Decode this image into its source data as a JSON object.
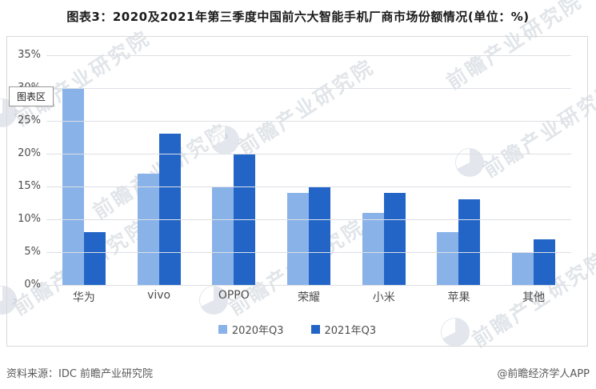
{
  "page": {
    "title": "图表3：2020及2021年第三季度中国前六大智能手机厂商市场份额情况(单位：%)"
  },
  "tooltip": {
    "label": "图表区"
  },
  "legend": {
    "items": [
      {
        "label": "2020年Q3",
        "color": "#89B2E8"
      },
      {
        "label": "2021年Q3",
        "color": "#2365C7"
      }
    ]
  },
  "footer": {
    "source": "资料来源：IDC 前瞻产业研究院",
    "credit": "@前瞻经济学人APP"
  },
  "watermark": {
    "text": "前瞻产业研究院"
  },
  "colors": {
    "bar_2020": "#89B2E8",
    "bar_2021": "#2365C7",
    "gridline": "#dcdfe5",
    "axis_text": "#4d4d4d"
  },
  "chart_data": {
    "type": "bar",
    "title": "图表3：2020及2021年第三季度中国前六大智能手机厂商市场份额情况(单位：%)",
    "unit": "%",
    "categories": [
      "华为",
      "vivo",
      "OPPO",
      "荣耀",
      "小米",
      "苹果",
      "其他"
    ],
    "series": [
      {
        "name": "2020年Q3",
        "color": "#89B2E8",
        "values": [
          30,
          17,
          15,
          14,
          11,
          8,
          5
        ]
      },
      {
        "name": "2021年Q3",
        "color": "#2365C7",
        "values": [
          8,
          23,
          20,
          15,
          14,
          13,
          7
        ]
      }
    ],
    "ylim": [
      0,
      35
    ],
    "ytick_step": 5,
    "yticks": [
      "35%",
      "30%",
      "25%",
      "20%",
      "15%",
      "10%",
      "5%",
      "0%"
    ],
    "grid": true,
    "legend_position": "bottom"
  }
}
